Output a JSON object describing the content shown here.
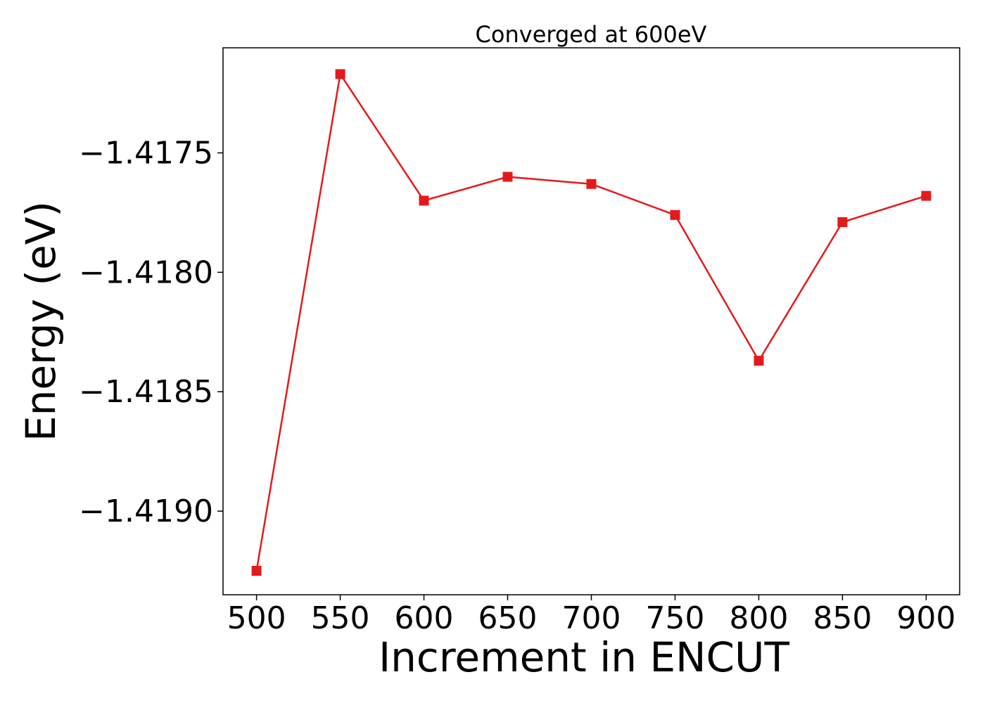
{
  "chart_data": {
    "type": "line",
    "title": "Converged at 600eV",
    "xlabel": "Increment in ENCUT",
    "ylabel": "Energy (eV)",
    "x": [
      500,
      550,
      600,
      650,
      700,
      750,
      800,
      850,
      900
    ],
    "series": [
      {
        "values": [
          -1.41925,
          -1.41717,
          -1.4177,
          -1.4176,
          -1.41763,
          -1.41776,
          -1.41837,
          -1.41779,
          -1.41768
        ],
        "color": "#e31a1c",
        "marker": "square"
      }
    ],
    "x_ticks": [
      500,
      550,
      600,
      650,
      700,
      750,
      800,
      850,
      900
    ],
    "x_tick_labels": [
      "500",
      "550",
      "600",
      "650",
      "700",
      "750",
      "800",
      "850",
      "900"
    ],
    "y_ticks": [
      -1.4175,
      -1.418,
      -1.4185,
      -1.419
    ],
    "y_tick_labels": [
      "−1.4175",
      "−1.4180",
      "−1.4185",
      "−1.4190"
    ],
    "xlim": [
      480,
      920
    ],
    "ylim": [
      -1.41935,
      -1.41706
    ],
    "grid": false,
    "legend": false
  }
}
